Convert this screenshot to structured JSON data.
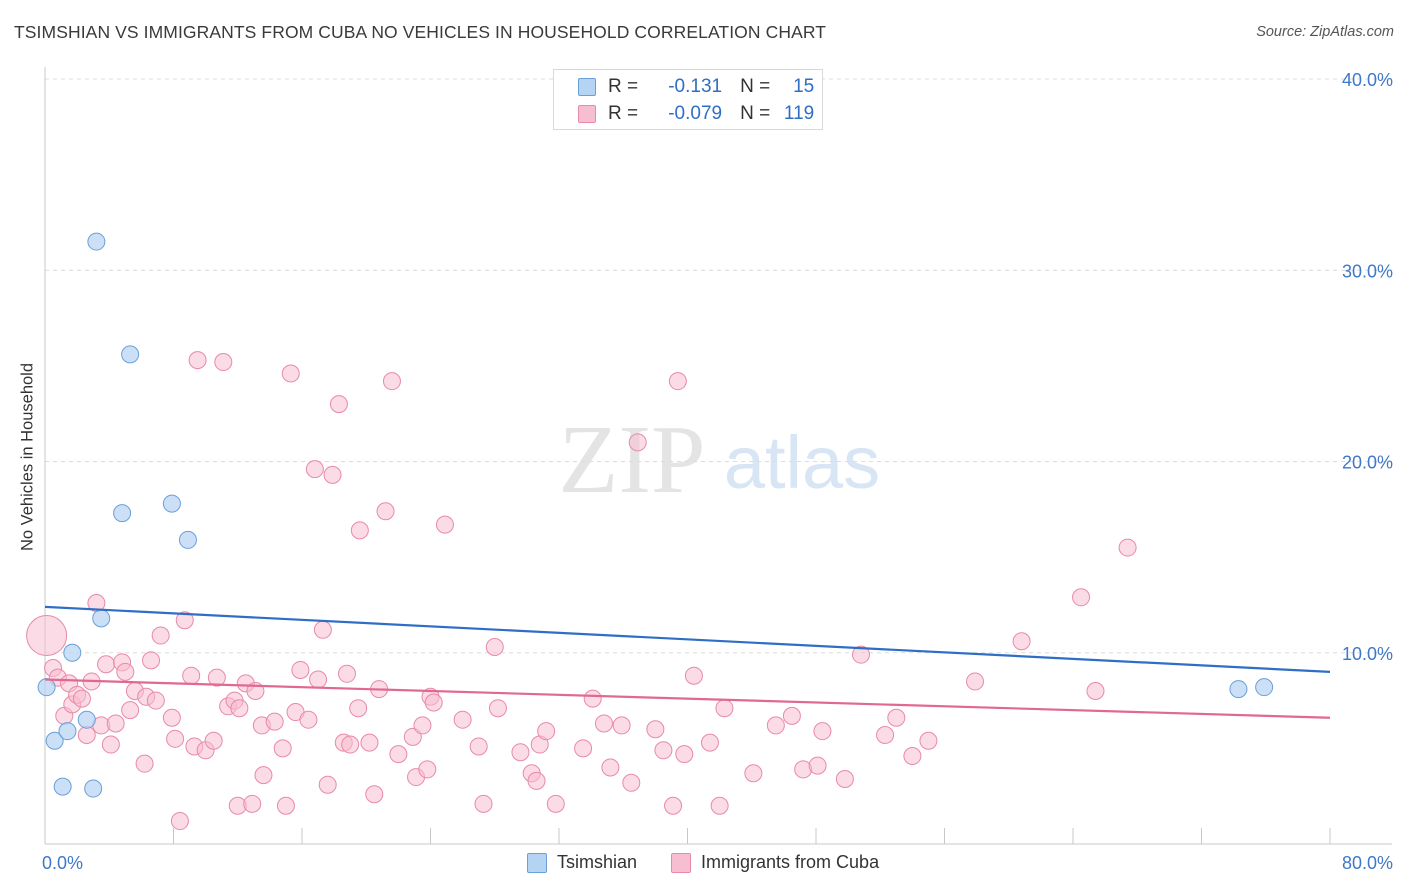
{
  "header": {
    "title": "TSIMSHIAN VS IMMIGRANTS FROM CUBA NO VEHICLES IN HOUSEHOLD CORRELATION CHART",
    "source": "Source: ZipAtlas.com"
  },
  "watermark": {
    "zip": "ZIP",
    "atlas": "atlas"
  },
  "legend": {
    "r_label": "R =",
    "n_label": "N =",
    "rows": [
      {
        "name": "Tsimshian",
        "r": "-0.131",
        "n": "15"
      },
      {
        "name": "Immigrants from Cuba",
        "r": "-0.079",
        "n": "119"
      }
    ]
  },
  "colors": {
    "tsimshian_fill": "#b5d3f3",
    "tsimshian_stroke": "#6a9fd8",
    "tsimshian_line": "#2f6ec6",
    "cuba_fill": "#f7bdd0",
    "cuba_stroke": "#e88aa8",
    "cuba_line": "#e06892",
    "axis_text": "#3f78c8"
  },
  "chart_data": {
    "type": "scatter",
    "title": "TSIMSHIAN VS IMMIGRANTS FROM CUBA NO VEHICLES IN HOUSEHOLD CORRELATION CHART",
    "xlabel": "",
    "ylabel": "No Vehicles in Household",
    "xlim": [
      0,
      80
    ],
    "ylim": [
      0,
      40
    ],
    "x_tick_labels": [
      "0.0%",
      "80.0%"
    ],
    "y_ticks": [
      10,
      20,
      30,
      40
    ],
    "y_tick_labels": [
      "10.0%",
      "20.0%",
      "30.0%",
      "40.0%"
    ],
    "grid": true,
    "series": [
      {
        "name": "Tsimshian",
        "trend": {
          "x": [
            0,
            80
          ],
          "y": [
            12.4,
            9.0
          ]
        },
        "points": [
          {
            "x": 0.1,
            "y": 8.2
          },
          {
            "x": 0.6,
            "y": 5.4
          },
          {
            "x": 1.1,
            "y": 3.0
          },
          {
            "x": 1.4,
            "y": 5.9
          },
          {
            "x": 1.7,
            "y": 10.0
          },
          {
            "x": 2.6,
            "y": 6.5
          },
          {
            "x": 3.0,
            "y": 2.9
          },
          {
            "x": 3.2,
            "y": 31.5
          },
          {
            "x": 3.5,
            "y": 11.8
          },
          {
            "x": 4.8,
            "y": 17.3
          },
          {
            "x": 5.3,
            "y": 25.6
          },
          {
            "x": 7.9,
            "y": 17.8
          },
          {
            "x": 8.9,
            "y": 15.9
          },
          {
            "x": 74.3,
            "y": 8.1
          },
          {
            "x": 75.9,
            "y": 8.2
          }
        ]
      },
      {
        "name": "Immigrants from Cuba",
        "trend": {
          "x": [
            0,
            80
          ],
          "y": [
            8.6,
            6.6
          ]
        },
        "points": [
          {
            "x": 0.1,
            "y": 10.9,
            "big": true
          },
          {
            "x": 0.5,
            "y": 9.2
          },
          {
            "x": 0.8,
            "y": 8.7
          },
          {
            "x": 1.2,
            "y": 6.7
          },
          {
            "x": 1.5,
            "y": 8.4
          },
          {
            "x": 1.7,
            "y": 7.3
          },
          {
            "x": 2.0,
            "y": 7.8
          },
          {
            "x": 2.3,
            "y": 7.6
          },
          {
            "x": 2.6,
            "y": 5.7
          },
          {
            "x": 2.9,
            "y": 8.5
          },
          {
            "x": 3.2,
            "y": 12.6
          },
          {
            "x": 3.5,
            "y": 6.2
          },
          {
            "x": 3.8,
            "y": 9.4
          },
          {
            "x": 4.1,
            "y": 5.2
          },
          {
            "x": 4.4,
            "y": 6.3
          },
          {
            "x": 4.8,
            "y": 9.5
          },
          {
            "x": 5.0,
            "y": 9.0
          },
          {
            "x": 5.3,
            "y": 7.0
          },
          {
            "x": 5.6,
            "y": 8.0
          },
          {
            "x": 6.2,
            "y": 4.2
          },
          {
            "x": 6.3,
            "y": 7.7
          },
          {
            "x": 6.6,
            "y": 9.6
          },
          {
            "x": 6.9,
            "y": 7.5
          },
          {
            "x": 7.2,
            "y": 10.9
          },
          {
            "x": 7.9,
            "y": 6.6
          },
          {
            "x": 8.1,
            "y": 5.5
          },
          {
            "x": 8.4,
            "y": 1.2
          },
          {
            "x": 8.7,
            "y": 11.7
          },
          {
            "x": 9.1,
            "y": 8.8
          },
          {
            "x": 9.3,
            "y": 5.1
          },
          {
            "x": 9.5,
            "y": 25.3
          },
          {
            "x": 10.0,
            "y": 4.9
          },
          {
            "x": 10.5,
            "y": 5.4
          },
          {
            "x": 10.7,
            "y": 8.7
          },
          {
            "x": 11.1,
            "y": 25.2
          },
          {
            "x": 11.4,
            "y": 7.2
          },
          {
            "x": 11.8,
            "y": 7.5
          },
          {
            "x": 12.0,
            "y": 2.0
          },
          {
            "x": 12.1,
            "y": 7.1
          },
          {
            "x": 12.5,
            "y": 8.4
          },
          {
            "x": 12.9,
            "y": 2.1
          },
          {
            "x": 13.1,
            "y": 8.0
          },
          {
            "x": 13.5,
            "y": 6.2
          },
          {
            "x": 13.6,
            "y": 3.6
          },
          {
            "x": 14.3,
            "y": 6.4
          },
          {
            "x": 14.8,
            "y": 5.0
          },
          {
            "x": 15.0,
            "y": 2.0
          },
          {
            "x": 15.3,
            "y": 24.6
          },
          {
            "x": 15.6,
            "y": 6.9
          },
          {
            "x": 15.9,
            "y": 9.1
          },
          {
            "x": 16.4,
            "y": 6.5
          },
          {
            "x": 16.8,
            "y": 19.6
          },
          {
            "x": 17.0,
            "y": 8.6
          },
          {
            "x": 17.3,
            "y": 11.2
          },
          {
            "x": 17.6,
            "y": 3.1
          },
          {
            "x": 17.9,
            "y": 19.3
          },
          {
            "x": 18.3,
            "y": 23.0
          },
          {
            "x": 18.6,
            "y": 5.3
          },
          {
            "x": 18.8,
            "y": 8.9
          },
          {
            "x": 19.0,
            "y": 5.2
          },
          {
            "x": 19.5,
            "y": 7.1
          },
          {
            "x": 19.6,
            "y": 16.4
          },
          {
            "x": 20.2,
            "y": 5.3
          },
          {
            "x": 20.5,
            "y": 2.6
          },
          {
            "x": 20.8,
            "y": 8.1
          },
          {
            "x": 21.2,
            "y": 17.4
          },
          {
            "x": 21.6,
            "y": 24.2
          },
          {
            "x": 22.0,
            "y": 4.7
          },
          {
            "x": 22.9,
            "y": 5.6
          },
          {
            "x": 23.1,
            "y": 3.5
          },
          {
            "x": 23.5,
            "y": 6.2
          },
          {
            "x": 23.8,
            "y": 3.9
          },
          {
            "x": 24.0,
            "y": 7.7
          },
          {
            "x": 24.2,
            "y": 7.4
          },
          {
            "x": 24.9,
            "y": 16.7
          },
          {
            "x": 26.0,
            "y": 6.5
          },
          {
            "x": 27.0,
            "y": 5.1
          },
          {
            "x": 27.3,
            "y": 2.1
          },
          {
            "x": 28.0,
            "y": 10.3
          },
          {
            "x": 28.2,
            "y": 7.1
          },
          {
            "x": 29.6,
            "y": 4.8
          },
          {
            "x": 30.3,
            "y": 3.7
          },
          {
            "x": 30.6,
            "y": 3.3
          },
          {
            "x": 30.8,
            "y": 5.2
          },
          {
            "x": 31.2,
            "y": 5.9
          },
          {
            "x": 31.8,
            "y": 2.1
          },
          {
            "x": 33.5,
            "y": 5.0
          },
          {
            "x": 34.1,
            "y": 7.6
          },
          {
            "x": 34.8,
            "y": 6.3
          },
          {
            "x": 35.2,
            "y": 4.0
          },
          {
            "x": 35.9,
            "y": 6.2
          },
          {
            "x": 36.5,
            "y": 3.2
          },
          {
            "x": 36.9,
            "y": 21.0
          },
          {
            "x": 38.0,
            "y": 6.0
          },
          {
            "x": 38.5,
            "y": 4.9
          },
          {
            "x": 39.1,
            "y": 2.0
          },
          {
            "x": 39.4,
            "y": 24.2
          },
          {
            "x": 39.8,
            "y": 4.7
          },
          {
            "x": 40.4,
            "y": 8.8
          },
          {
            "x": 41.4,
            "y": 5.3
          },
          {
            "x": 42.0,
            "y": 2.0
          },
          {
            "x": 42.3,
            "y": 7.1
          },
          {
            "x": 44.1,
            "y": 3.7
          },
          {
            "x": 45.5,
            "y": 6.2
          },
          {
            "x": 46.5,
            "y": 6.7
          },
          {
            "x": 47.2,
            "y": 3.9
          },
          {
            "x": 48.1,
            "y": 4.1
          },
          {
            "x": 48.4,
            "y": 5.9
          },
          {
            "x": 49.8,
            "y": 3.4
          },
          {
            "x": 50.8,
            "y": 9.9
          },
          {
            "x": 52.3,
            "y": 5.7
          },
          {
            "x": 53.0,
            "y": 6.6
          },
          {
            "x": 54.0,
            "y": 4.6
          },
          {
            "x": 55.0,
            "y": 5.4
          },
          {
            "x": 57.9,
            "y": 8.5
          },
          {
            "x": 60.8,
            "y": 10.6
          },
          {
            "x": 64.5,
            "y": 12.9
          },
          {
            "x": 65.4,
            "y": 8.0
          },
          {
            "x": 67.4,
            "y": 15.5
          }
        ]
      }
    ]
  }
}
